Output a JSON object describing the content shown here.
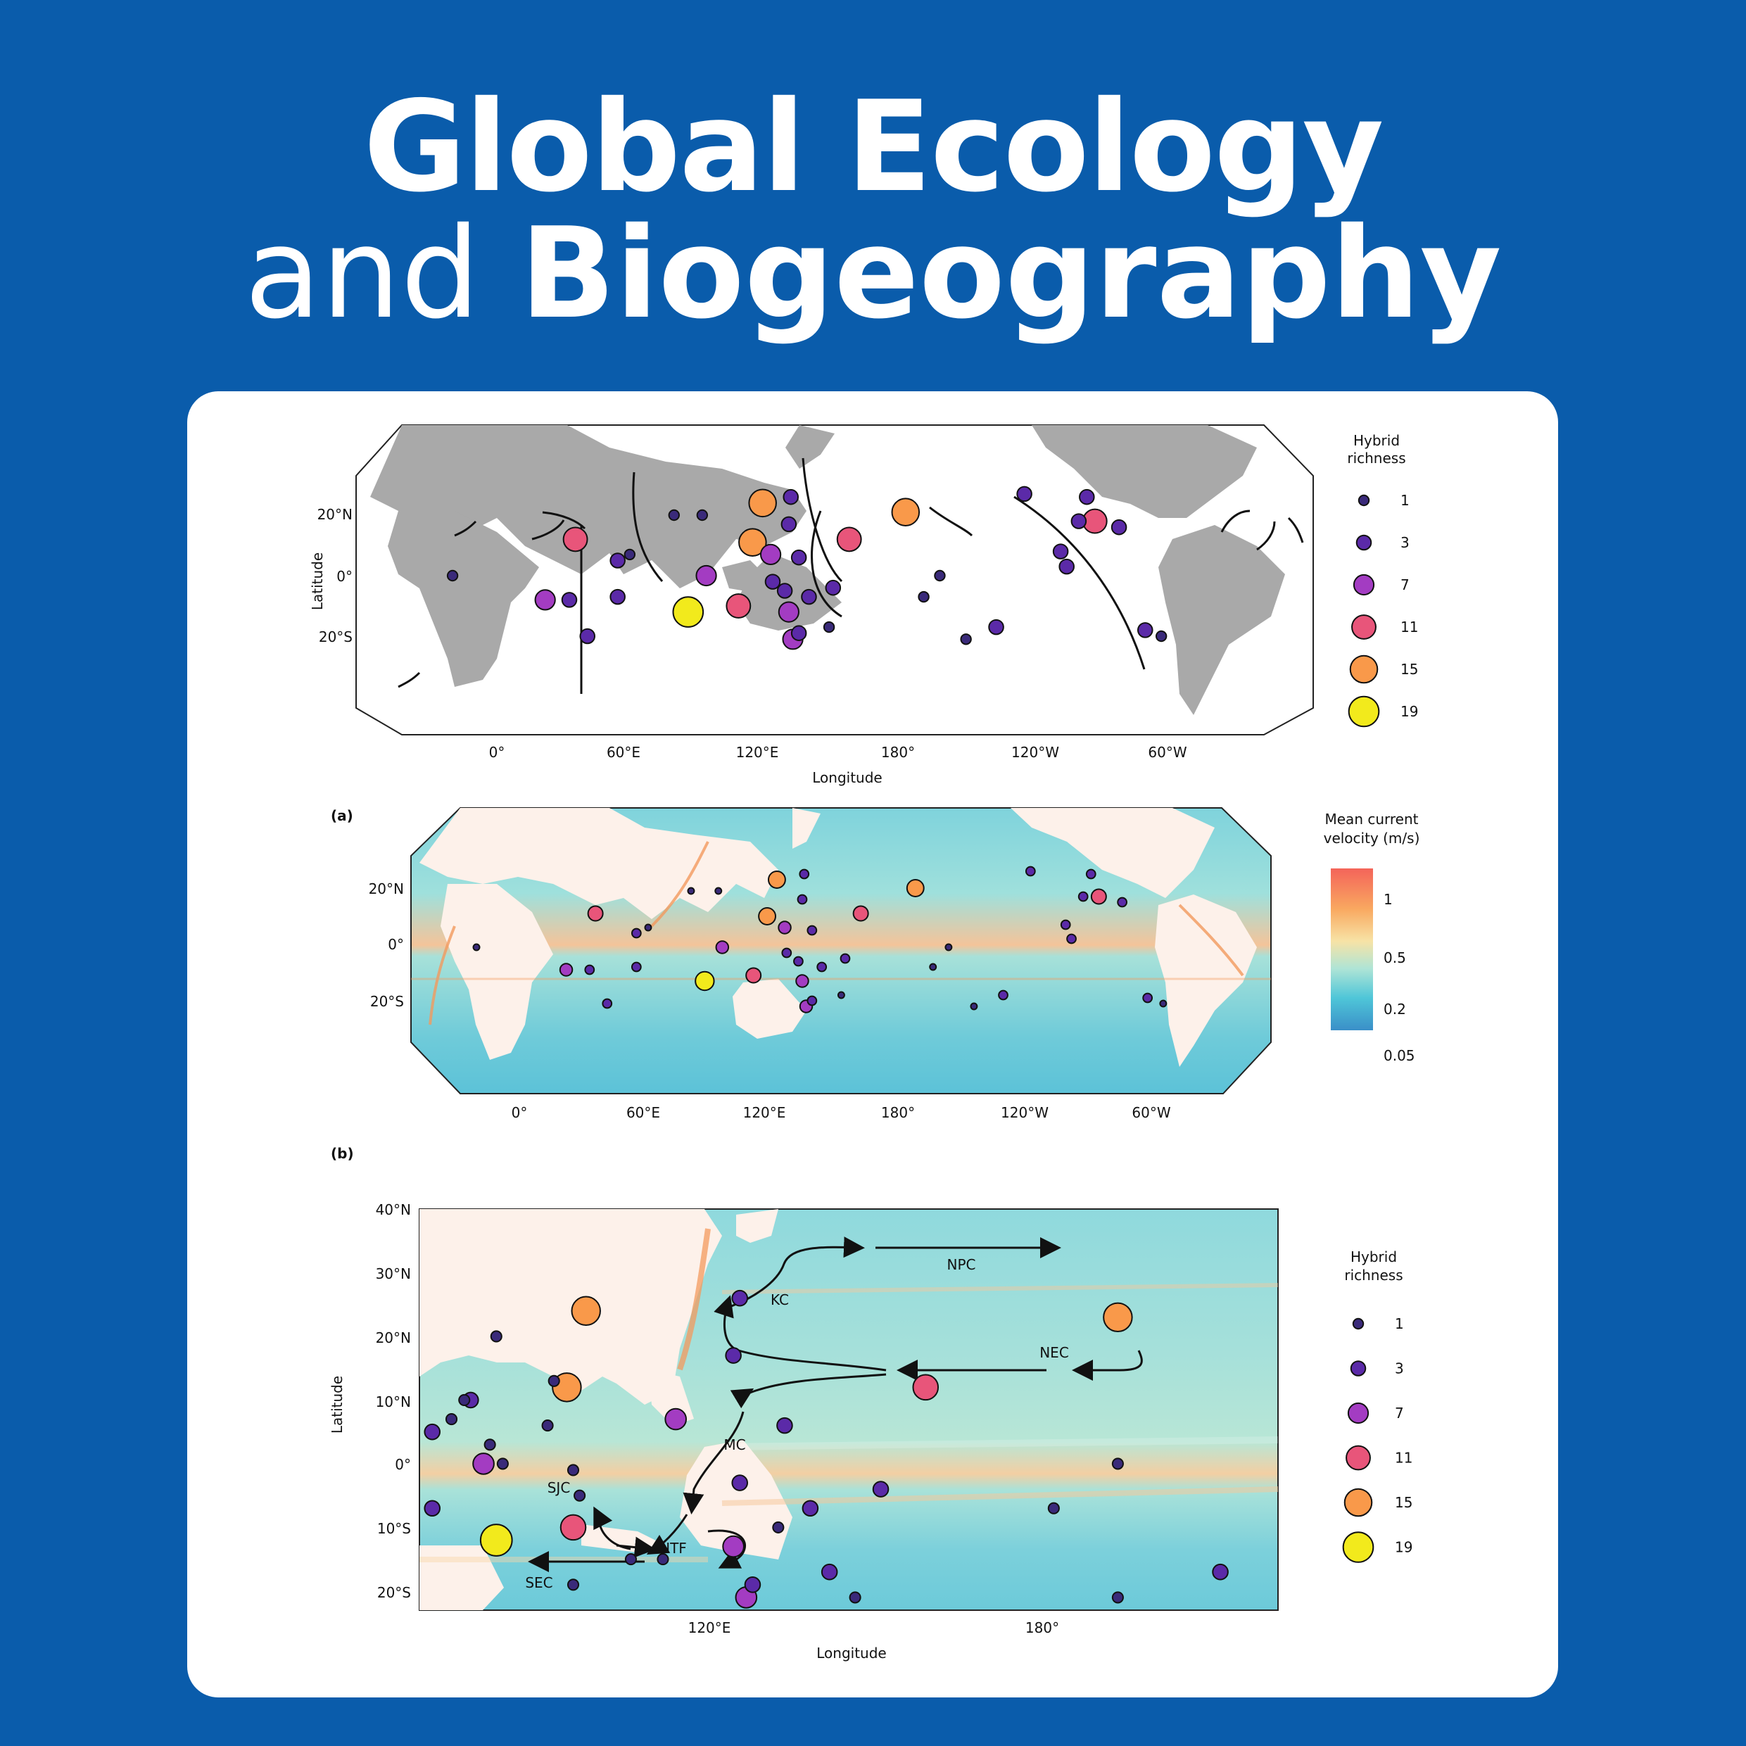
{
  "journal": {
    "title_line1": "Global Ecology",
    "title_line2_light": "and",
    "title_line2_bold": "Biogeography"
  },
  "colors": {
    "background": "#0a5cab",
    "card": "#ffffff",
    "land": "#a9a9a9",
    "richness_scale": {
      "1": "#3a2a7a",
      "3": "#5b2aa8",
      "7": "#a33cc2",
      "11": "#e8557a",
      "15": "#f9994a",
      "19": "#f2ea1c"
    }
  },
  "panels": {
    "top": {
      "ylabel": "Latitude",
      "xlabel": "Longitude",
      "lat_ticks": [
        "20°N",
        "0°",
        "20°S"
      ],
      "lon_ticks": [
        "0°",
        "60°E",
        "120°E",
        "180°",
        "120°W",
        "60°W"
      ],
      "legend": {
        "title_line1": "Hybrid",
        "title_line2": "richness",
        "values": [
          "1",
          "3",
          "7",
          "11",
          "15",
          "19"
        ]
      }
    },
    "a": {
      "label": "(a)",
      "lat_ticks": [
        "20°N",
        "0°",
        "20°S"
      ],
      "lon_ticks": [
        "0°",
        "60°E",
        "120°E",
        "180°",
        "120°W",
        "60°W"
      ],
      "colorbar": {
        "title_line1": "Mean current",
        "title_line2": "velocity (m/s)",
        "ticks": [
          "1",
          "0.5",
          "0.2",
          "0.05"
        ]
      }
    },
    "b": {
      "label": "(b)",
      "ylabel": "Latitude",
      "xlabel": "Longitude",
      "lat_ticks": [
        "40°N",
        "30°N",
        "20°N",
        "10°N",
        "0°",
        "10°S",
        "20°S"
      ],
      "lon_ticks": [
        "120°E",
        "180°"
      ],
      "currents": [
        "NPC",
        "KC",
        "NEC",
        "MC",
        "SJC",
        "ITF",
        "SEC"
      ],
      "legend": {
        "title_line1": "Hybrid",
        "title_line2": "richness",
        "values": [
          "1",
          "3",
          "7",
          "11",
          "15",
          "19"
        ]
      }
    }
  },
  "chart_data": [
    {
      "type": "scatter",
      "title": "",
      "xlabel": "Longitude",
      "ylabel": "Latitude",
      "size_variable": "Hybrid richness",
      "points": [
        {
          "lon": 132,
          "lat": 24,
          "richness": 15
        },
        {
          "lon": 127,
          "lat": 11,
          "richness": 15
        },
        {
          "lon": -157,
          "lat": 21,
          "richness": 15
        },
        {
          "lon": 95,
          "lat": -12,
          "richness": 19
        },
        {
          "lon": 39,
          "lat": 12,
          "richness": 11
        },
        {
          "lon": 175,
          "lat": 12,
          "richness": 11
        },
        {
          "lon": 120,
          "lat": -10,
          "richness": 11
        },
        {
          "lon": -63,
          "lat": 18,
          "richness": 11
        },
        {
          "lon": 136,
          "lat": 7,
          "richness": 7
        },
        {
          "lon": 145,
          "lat": -12,
          "richness": 7
        },
        {
          "lon": 147,
          "lat": -21,
          "richness": 7
        },
        {
          "lon": 104,
          "lat": 0,
          "richness": 7
        },
        {
          "lon": 24,
          "lat": -8,
          "richness": 7
        },
        {
          "lon": 146,
          "lat": 26,
          "richness": 3
        },
        {
          "lon": 145,
          "lat": 17,
          "richness": 3
        },
        {
          "lon": 155,
          "lat": -7,
          "richness": 3
        },
        {
          "lon": 167,
          "lat": -4,
          "richness": 3
        },
        {
          "lon": -98,
          "lat": 27,
          "richness": 3
        },
        {
          "lon": -67,
          "lat": 26,
          "richness": 3
        },
        {
          "lon": -71,
          "lat": 18,
          "richness": 3
        },
        {
          "lon": -80,
          "lat": 8,
          "richness": 3
        },
        {
          "lon": -77,
          "lat": 3,
          "richness": 3
        },
        {
          "lon": -51,
          "lat": 16,
          "richness": 3
        },
        {
          "lon": -38,
          "lat": -18,
          "richness": 3
        },
        {
          "lon": 60,
          "lat": 5,
          "richness": 3
        },
        {
          "lon": 60,
          "lat": -7,
          "richness": 3
        },
        {
          "lon": 45,
          "lat": -20,
          "richness": 3
        },
        {
          "lon": 36,
          "lat": -8,
          "richness": 3
        },
        {
          "lon": 137,
          "lat": -2,
          "richness": 3
        },
        {
          "lon": 143,
          "lat": -5,
          "richness": 3
        },
        {
          "lon": 150,
          "lat": -19,
          "richness": 3
        },
        {
          "lon": -112,
          "lat": -17,
          "richness": 3
        },
        {
          "lon": 150,
          "lat": 6,
          "richness": 3
        },
        {
          "lon": 102,
          "lat": 20,
          "richness": 1
        },
        {
          "lon": 88,
          "lat": 20,
          "richness": 1
        },
        {
          "lon": 66,
          "lat": 7,
          "richness": 1
        },
        {
          "lon": -127,
          "lat": -21,
          "richness": 1
        },
        {
          "lon": -140,
          "lat": 0,
          "richness": 1
        },
        {
          "lon": -148,
          "lat": -7,
          "richness": 1
        },
        {
          "lon": 165,
          "lat": -17,
          "richness": 1
        },
        {
          "lon": -30,
          "lat": -20,
          "richness": 1
        },
        {
          "lon": -22,
          "lat": 0,
          "richness": 1
        }
      ]
    },
    {
      "type": "scatter",
      "title": "",
      "xlabel": "Longitude",
      "ylabel": "Latitude",
      "xlim": [
        96,
        230
      ],
      "ylim": [
        -23,
        40
      ],
      "size_variable": "Hybrid richness",
      "points": [
        {
          "lon": 122,
          "lat": 24,
          "richness": 15
        },
        {
          "lon": 119,
          "lat": 12,
          "richness": 15
        },
        {
          "lon": 205,
          "lat": 23,
          "richness": 15
        },
        {
          "lon": 122,
          "lat": 12,
          "richness": 15
        },
        {
          "lon": 122,
          "lat": 24,
          "richness": 15
        },
        {
          "lon": 122,
          "lat": 24,
          "richness": 15
        },
        {
          "lon": 122,
          "lat": 24,
          "richness": 15
        },
        {
          "lon": 122,
          "lat": 24,
          "richness": 15
        }
      ]
    }
  ]
}
